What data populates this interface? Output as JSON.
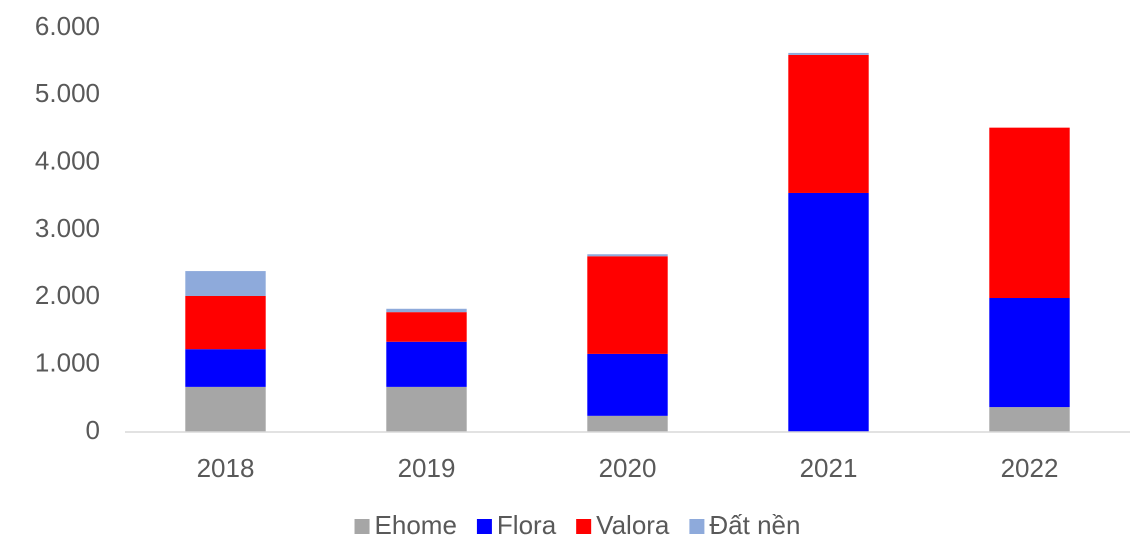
{
  "chart_data": {
    "type": "stacked_bar",
    "categories": [
      "2018",
      "2019",
      "2020",
      "2021",
      "2022"
    ],
    "series": [
      {
        "name": "Ehome",
        "color": "#a6a6a6",
        "values": [
          670,
          670,
          240,
          0,
          370
        ]
      },
      {
        "name": "Flora",
        "color": "#0000ff",
        "values": [
          560,
          670,
          920,
          3550,
          1620
        ]
      },
      {
        "name": "Valora",
        "color": "#ff0000",
        "values": [
          790,
          440,
          1450,
          2050,
          2530
        ]
      },
      {
        "name": "Đất nền",
        "color": "#8eaadb",
        "values": [
          370,
          50,
          30,
          30,
          0
        ]
      }
    ],
    "ylim": [
      0,
      6000
    ],
    "yticks": [
      0,
      {
        "value": 1000,
        "label": "1.000"
      },
      {
        "value": 2000,
        "label": "2.000"
      },
      {
        "value": 3000,
        "label": "3.000"
      },
      {
        "value": 4000,
        "label": "4.000"
      },
      {
        "value": 5000,
        "label": "5.000"
      },
      {
        "value": 6000,
        "label": "6.000"
      }
    ],
    "grid": false,
    "legend": "bottom"
  }
}
